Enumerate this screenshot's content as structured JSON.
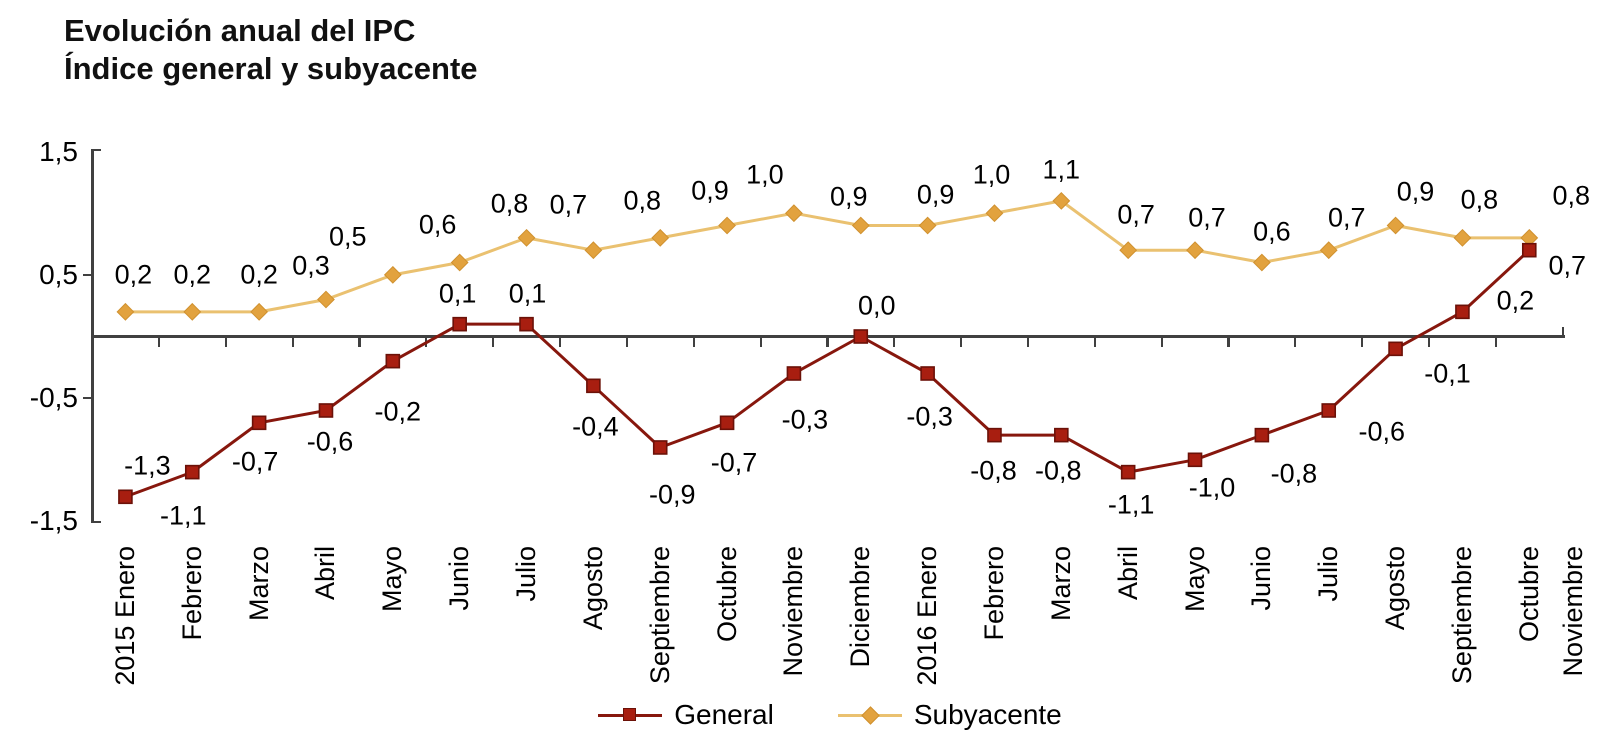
{
  "title": {
    "line1": "Evolución anual del IPC",
    "line2": "Índice general y subyacente"
  },
  "chart_data": {
    "type": "line",
    "title": "Evolución anual del IPC — Índice general y subyacente",
    "categories": [
      "2015 Enero",
      "Febrero",
      "Marzo",
      "Abril",
      "Mayo",
      "Junio",
      "Julio",
      "Agosto",
      "Septiembre",
      "Octubre",
      "Noviembre",
      "Diciembre",
      "2016 Enero",
      "Febrero",
      "Marzo",
      "Abril",
      "Mayo",
      "Junio",
      "Julio",
      "Agosto",
      "Septiembre",
      "Octubre",
      "Noviembre"
    ],
    "series": [
      {
        "name": "General",
        "marker": "square",
        "values": [
          -1.3,
          -1.1,
          -0.7,
          -0.6,
          -0.2,
          0.1,
          0.1,
          -0.4,
          -0.9,
          -0.7,
          -0.3,
          0.0,
          -0.3,
          -0.8,
          -0.8,
          -1.1,
          -1.0,
          -0.8,
          -0.6,
          -0.1,
          0.2,
          0.7
        ],
        "labels": [
          "-1,3",
          "-1,1",
          "-0,7",
          "-0,6",
          "-0,2",
          "0,1",
          "0,1",
          "-0,4",
          "-0,9",
          "-0,7",
          "-0,3",
          "0,0",
          "-0,3",
          "-0,8",
          "-0,8",
          "-1,1",
          "-1,0",
          "-0,8",
          "-0,6",
          "-0,1",
          "0,2",
          "0,7"
        ]
      },
      {
        "name": "Subyacente",
        "marker": "diamond",
        "values": [
          0.2,
          0.2,
          0.2,
          0.3,
          0.5,
          0.6,
          0.8,
          0.7,
          0.8,
          0.9,
          1.0,
          0.9,
          0.9,
          1.0,
          1.1,
          0.7,
          0.7,
          0.6,
          0.7,
          0.9,
          0.8,
          0.8
        ],
        "labels": [
          "0,2",
          "0,2",
          "0,2",
          "0,3",
          "0,5",
          "0,6",
          "0,8",
          "0,7",
          "0,8",
          "0,9",
          "1,0",
          "0,9",
          "0,9",
          "1,0",
          "1,1",
          "0,7",
          "0,7",
          "0,6",
          "0,7",
          "0,9",
          "0,8",
          "0,8"
        ]
      }
    ],
    "ylim": [
      -1.5,
      1.5
    ],
    "ytick_values": [
      1.5,
      0.5,
      -0.5,
      -1.5
    ],
    "ytick_labels": [
      "1,5",
      "0,5",
      "-0,5",
      "-1,5"
    ],
    "grid": false,
    "legend_position": "bottom",
    "last_category_data_clipped": true
  },
  "colors": {
    "general_line": "#87170D",
    "general_marker": "#A81E10",
    "general_marker_border": "#6B1108",
    "subyacente_line": "#EAC170",
    "subyacente_marker": "#E2A23E",
    "subyacente_marker_border": "#D0912F",
    "axis": "#404040",
    "text": "#000000"
  }
}
